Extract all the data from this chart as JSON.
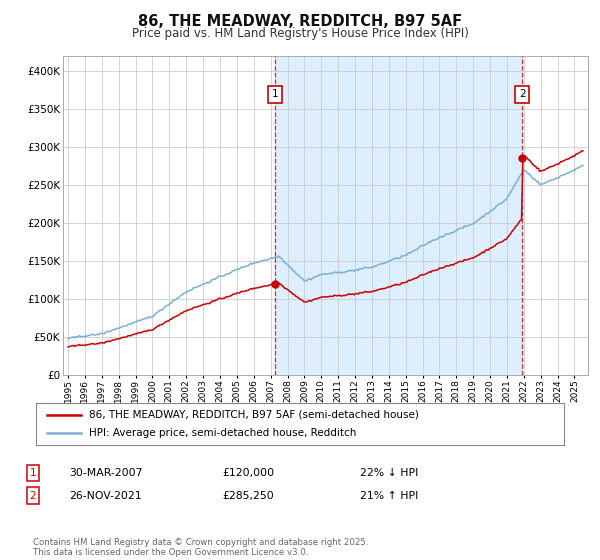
{
  "title": "86, THE MEADWAY, REDDITCH, B97 5AF",
  "subtitle": "Price paid vs. HM Land Registry's House Price Index (HPI)",
  "legend_line1": "86, THE MEADWAY, REDDITCH, B97 5AF (semi-detached house)",
  "legend_line2": "HPI: Average price, semi-detached house, Redditch",
  "annotation1_date": "30-MAR-2007",
  "annotation1_price": "£120,000",
  "annotation1_hpi": "22% ↓ HPI",
  "annotation2_date": "26-NOV-2021",
  "annotation2_price": "£285,250",
  "annotation2_hpi": "21% ↑ HPI",
  "footer": "Contains HM Land Registry data © Crown copyright and database right 2025.\nThis data is licensed under the Open Government Licence v3.0.",
  "sale1_year": 2007.24,
  "sale1_price": 120000,
  "sale2_year": 2021.9,
  "sale2_price": 285250,
  "property_color": "#cc0000",
  "hpi_color": "#7ab0d4",
  "shade_color": "#ddeeff",
  "background_color": "#ffffff",
  "grid_color": "#cccccc",
  "ylim_max": 420000,
  "ylim_min": 0,
  "xlim_min": 1994.7,
  "xlim_max": 2025.8
}
